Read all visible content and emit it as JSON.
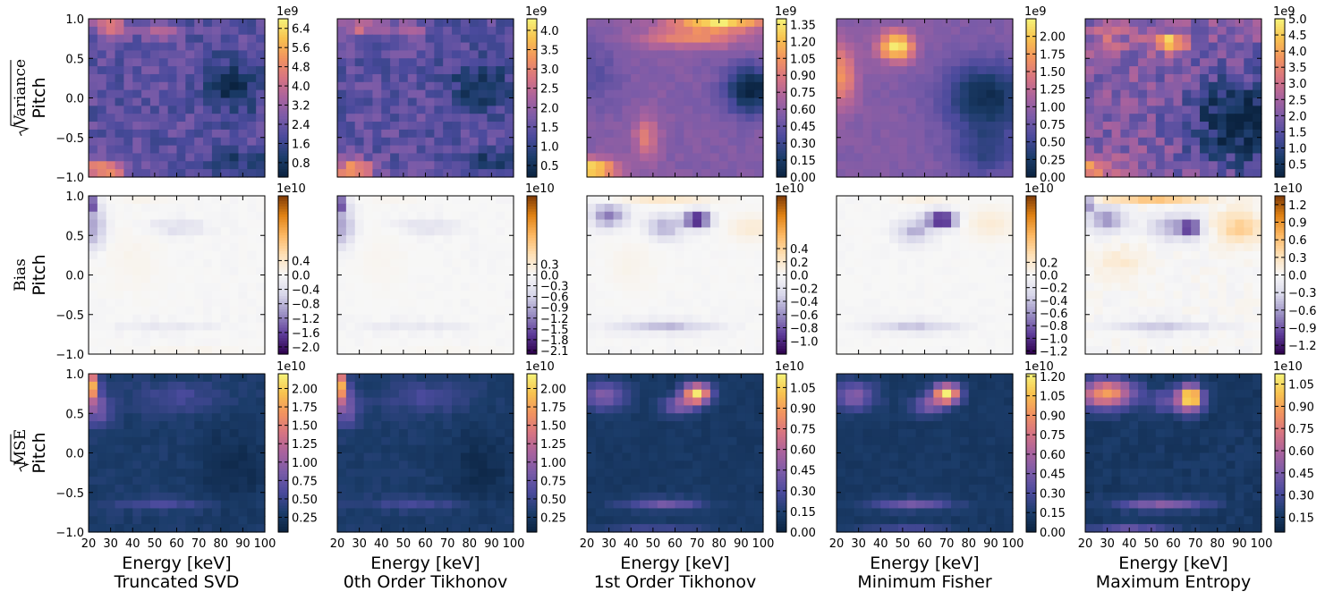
{
  "figure": {
    "methods": [
      "Truncated SVD",
      "0th Order Tikhonov",
      "1st Order Tikhonov",
      "Minimum Fisher",
      "Maximum Entropy"
    ],
    "row_labels": [
      "Variance",
      "Bias",
      "MSE"
    ],
    "ylabel": "Pitch",
    "xlabel": "Energy [keV]",
    "x_ticks": [
      "20",
      "30",
      "40",
      "50",
      "60",
      "70",
      "80",
      "90",
      "100"
    ],
    "y_ticks": [
      "1.0",
      "0.5",
      "0.0",
      "−0.5",
      "−1.0"
    ],
    "colormaps": {
      "sequential": [
        "#0b2340",
        "#1c3d6b",
        "#4a4a9c",
        "#7a5ba8",
        "#a8629e",
        "#d77482",
        "#f2935f",
        "#f8c24f",
        "#f6f47a"
      ],
      "diverging": [
        "#2d004b",
        "#5e3c99",
        "#9a8fc3",
        "#d8d7ea",
        "#f7f7f7",
        "#fee0b6",
        "#fdb863",
        "#e08214",
        "#7f3b08"
      ]
    }
  },
  "chart_data": [
    {
      "type": "heatmap",
      "row": "Variance",
      "method": "Truncated SVD",
      "colormap": "sequential",
      "colorbar_exponent": "1e9",
      "colorbar_ticks": [
        "0.8",
        "1.6",
        "2.4",
        "3.2",
        "4.0",
        "4.8",
        "5.6",
        "6.4"
      ],
      "vmin": 0.2,
      "vmax": 6.8,
      "xlim": [
        20,
        100
      ],
      "ylim": [
        -1.0,
        1.0
      ],
      "pattern": "variance_a"
    },
    {
      "type": "heatmap",
      "row": "Variance",
      "method": "0th Order Tikhonov",
      "colormap": "sequential",
      "colorbar_exponent": "1e9",
      "colorbar_ticks": [
        "0.5",
        "1.0",
        "1.5",
        "2.0",
        "2.5",
        "3.0",
        "3.5",
        "4.0"
      ],
      "vmin": 0.2,
      "vmax": 4.3,
      "xlim": [
        20,
        100
      ],
      "ylim": [
        -1.0,
        1.0
      ],
      "pattern": "variance_a"
    },
    {
      "type": "heatmap",
      "row": "Variance",
      "method": "1st Order Tikhonov",
      "colormap": "sequential",
      "colorbar_exponent": "1e9",
      "colorbar_ticks": [
        "0.00",
        "0.15",
        "0.30",
        "0.45",
        "0.60",
        "0.75",
        "0.90",
        "1.05",
        "1.20",
        "1.35"
      ],
      "vmin": 0.0,
      "vmax": 1.4,
      "xlim": [
        20,
        100
      ],
      "ylim": [
        -1.0,
        1.0
      ],
      "pattern": "variance_b"
    },
    {
      "type": "heatmap",
      "row": "Variance",
      "method": "Minimum Fisher",
      "colormap": "sequential",
      "colorbar_exponent": "1e9",
      "colorbar_ticks": [
        "0.00",
        "0.25",
        "0.50",
        "0.75",
        "1.00",
        "1.25",
        "1.50",
        "1.75",
        "2.00"
      ],
      "vmin": 0.0,
      "vmax": 2.25,
      "xlim": [
        20,
        100
      ],
      "ylim": [
        -1.0,
        1.0
      ],
      "pattern": "variance_c"
    },
    {
      "type": "heatmap",
      "row": "Variance",
      "method": "Maximum Entropy",
      "colormap": "sequential",
      "colorbar_exponent": "1e9",
      "colorbar_ticks": [
        "0.5",
        "1.0",
        "1.5",
        "2.0",
        "2.5",
        "3.0",
        "3.5",
        "4.0",
        "4.5",
        "5.0"
      ],
      "vmin": 0.1,
      "vmax": 5.0,
      "xlim": [
        20,
        100
      ],
      "ylim": [
        -1.0,
        1.0
      ],
      "pattern": "variance_d"
    },
    {
      "type": "heatmap",
      "row": "Bias",
      "method": "Truncated SVD",
      "colormap": "diverging",
      "colorbar_exponent": "1e10",
      "colorbar_ticks": [
        "0.4",
        "0.0",
        "−0.4",
        "−0.8",
        "−1.2",
        "−1.6",
        "−2.0"
      ],
      "vmin": -2.2,
      "vmax": 0.7,
      "xlim": [
        20,
        100
      ],
      "ylim": [
        -1.0,
        1.0
      ],
      "pattern": "bias_a"
    },
    {
      "type": "heatmap",
      "row": "Bias",
      "method": "0th Order Tikhonov",
      "colormap": "diverging",
      "colorbar_exponent": "1e10",
      "colorbar_ticks": [
        "0.3",
        "0.0",
        "−0.3",
        "−0.6",
        "−0.9",
        "−1.2",
        "−1.5",
        "−1.8",
        "−2.1"
      ],
      "vmin": -2.2,
      "vmax": 0.45,
      "xlim": [
        20,
        100
      ],
      "ylim": [
        -1.0,
        1.0
      ],
      "pattern": "bias_a"
    },
    {
      "type": "heatmap",
      "row": "Bias",
      "method": "1st Order Tikhonov",
      "colormap": "diverging",
      "colorbar_exponent": "1e10",
      "colorbar_ticks": [
        "0.4",
        "0.2",
        "0.0",
        "−0.2",
        "−0.4",
        "−0.6",
        "−0.8",
        "−1.0"
      ],
      "vmin": -1.2,
      "vmax": 0.4,
      "xlim": [
        20,
        100
      ],
      "ylim": [
        -1.0,
        1.0
      ],
      "pattern": "bias_b"
    },
    {
      "type": "heatmap",
      "row": "Bias",
      "method": "Minimum Fisher",
      "colormap": "diverging",
      "colorbar_exponent": "1e10",
      "colorbar_ticks": [
        "0.2",
        "0.0",
        "−0.2",
        "−0.4",
        "−0.6",
        "−0.8",
        "−1.0",
        "−1.2"
      ],
      "vmin": -1.25,
      "vmax": 0.33,
      "xlim": [
        20,
        100
      ],
      "ylim": [
        -1.0,
        1.0
      ],
      "pattern": "bias_c"
    },
    {
      "type": "heatmap",
      "row": "Bias",
      "method": "Maximum Entropy",
      "colormap": "diverging",
      "colorbar_exponent": "1e10",
      "colorbar_ticks": [
        "1.2",
        "0.9",
        "0.6",
        "0.3",
        "0.0",
        "−0.3",
        "−0.6",
        "−0.9",
        "−1.2"
      ],
      "vmin": -1.35,
      "vmax": 1.35,
      "xlim": [
        20,
        100
      ],
      "ylim": [
        -1.0,
        1.0
      ],
      "pattern": "bias_d"
    },
    {
      "type": "heatmap",
      "row": "MSE",
      "method": "Truncated SVD",
      "colormap": "sequential",
      "colorbar_exponent": "1e10",
      "colorbar_ticks": [
        "0.25",
        "0.50",
        "0.75",
        "1.00",
        "1.25",
        "1.50",
        "1.75",
        "2.00"
      ],
      "vmin": 0.05,
      "vmax": 2.2,
      "xlim": [
        20,
        100
      ],
      "ylim": [
        -1.0,
        1.0
      ],
      "pattern": "mse_a"
    },
    {
      "type": "heatmap",
      "row": "MSE",
      "method": "0th Order Tikhonov",
      "colormap": "sequential",
      "colorbar_exponent": "1e10",
      "colorbar_ticks": [
        "0.25",
        "0.50",
        "0.75",
        "1.00",
        "1.25",
        "1.50",
        "1.75",
        "2.00"
      ],
      "vmin": 0.05,
      "vmax": 2.2,
      "xlim": [
        20,
        100
      ],
      "ylim": [
        -1.0,
        1.0
      ],
      "pattern": "mse_a"
    },
    {
      "type": "heatmap",
      "row": "MSE",
      "method": "1st Order Tikhonov",
      "colormap": "sequential",
      "colorbar_exponent": "1e10",
      "colorbar_ticks": [
        "0.00",
        "0.15",
        "0.30",
        "0.45",
        "0.60",
        "0.75",
        "0.90",
        "1.05"
      ],
      "vmin": 0.0,
      "vmax": 1.15,
      "xlim": [
        20,
        100
      ],
      "ylim": [
        -1.0,
        1.0
      ],
      "pattern": "mse_b"
    },
    {
      "type": "heatmap",
      "row": "MSE",
      "method": "Minimum Fisher",
      "colormap": "sequential",
      "colorbar_exponent": "1e10",
      "colorbar_ticks": [
        "0.00",
        "0.15",
        "0.30",
        "0.45",
        "0.60",
        "0.75",
        "0.90",
        "1.05",
        "1.20"
      ],
      "vmin": 0.0,
      "vmax": 1.22,
      "xlim": [
        20,
        100
      ],
      "ylim": [
        -1.0,
        1.0
      ],
      "pattern": "mse_b"
    },
    {
      "type": "heatmap",
      "row": "MSE",
      "method": "Maximum Entropy",
      "colormap": "sequential",
      "colorbar_exponent": "1e10",
      "colorbar_ticks": [
        "0.15",
        "0.30",
        "0.45",
        "0.60",
        "0.75",
        "0.90",
        "1.05"
      ],
      "vmin": 0.05,
      "vmax": 1.12,
      "xlim": [
        20,
        100
      ],
      "ylim": [
        -1.0,
        1.0
      ],
      "pattern": "mse_c"
    }
  ]
}
